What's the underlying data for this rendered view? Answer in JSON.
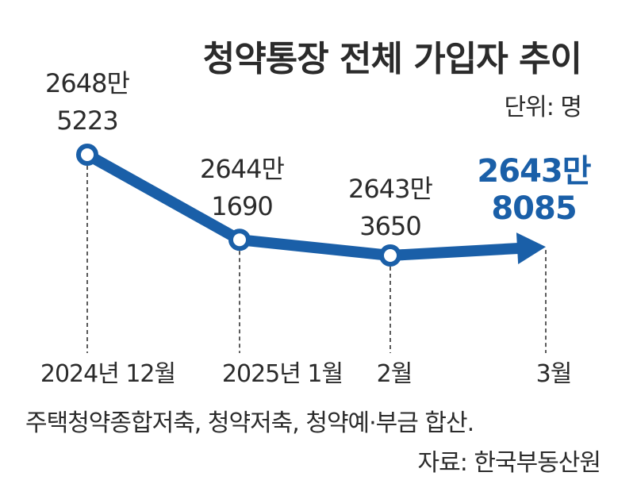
{
  "title": "청약통장 전체 가입자 추이",
  "unit_note": "단위: 명",
  "footnote": "주택청약종합저축, 청약저축, 청약예·부금 합산.",
  "source": "자료: 한국부동산원",
  "colors": {
    "accent": "#1a5fa8",
    "text": "#2b2b2b",
    "guide": "#333333"
  },
  "chart_data": {
    "type": "line",
    "x": [
      "2024년 12월",
      "2025년 1월",
      "2월",
      "3월"
    ],
    "series": [
      {
        "values": [
          26485223,
          26441690,
          26433650,
          26438085
        ],
        "labels": [
          [
            "2648만",
            "5223"
          ],
          [
            "2644만",
            "1690"
          ],
          [
            "2643만",
            "3650"
          ],
          [
            "2643만",
            "8085"
          ]
        ]
      }
    ],
    "highlight_last": true,
    "grid": false,
    "ylim": [
      26420000,
      26490000
    ]
  }
}
